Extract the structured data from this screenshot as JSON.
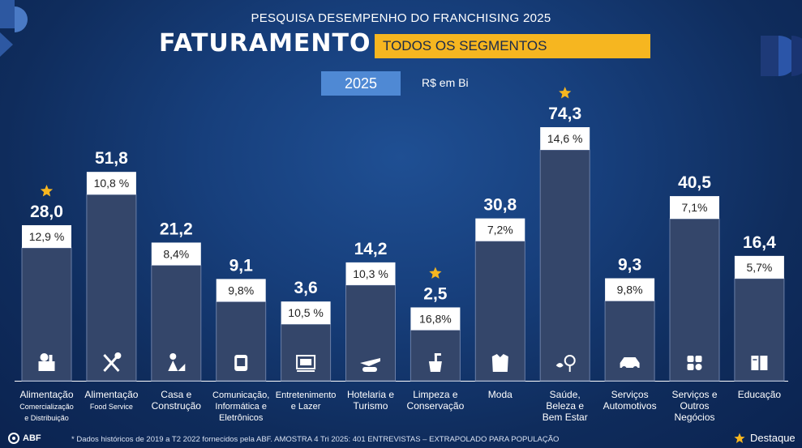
{
  "header": {
    "super_title": "PESQUISA DESEMPENHO DO FRANCHISING 2025",
    "title": "FATURAMENTO",
    "segment_badge": "TODOS OS SEGMENTOS",
    "year": "2025",
    "unit": "R$ em Bi"
  },
  "colors": {
    "background": "#173f7c",
    "bar": "#34466a",
    "bar_top": "#4a5d84",
    "label_box": "#ffffff",
    "accent": "#f6b620",
    "badge_blue": "#4f89d4"
  },
  "chart_data": {
    "type": "bar",
    "categories": [
      "Alimentação Comercialização e Distribuição",
      "Alimentação Food Service",
      "Casa e Construção",
      "Comunicação, Informática e Eletrônicos",
      "Entretenimento e Lazer",
      "Hotelaria e Turismo",
      "Limpeza e Conservação",
      "Moda",
      "Saúde, Beleza e Bem Estar",
      "Serviços Automotivos",
      "Serviços e Outros Negócios",
      "Educação"
    ],
    "category_label_lines": [
      [
        "Alimentação",
        "Comercialização",
        "e Distribuição"
      ],
      [
        "Alimentação",
        "Food Service"
      ],
      [
        "Casa e",
        "Construção"
      ],
      [
        "Comunicação,",
        "Informática e",
        "Eletrônicos"
      ],
      [
        "Entretenimento",
        "e Lazer"
      ],
      [
        "Hotelaria e",
        "Turismo"
      ],
      [
        "Limpeza e",
        "Conservação"
      ],
      [
        "Moda"
      ],
      [
        "Saúde,",
        "Beleza e",
        "Bem Estar"
      ],
      [
        "Serviços",
        "Automotivos"
      ],
      [
        "Serviços e",
        "Outros",
        "Negócios"
      ],
      [
        "Educação"
      ]
    ],
    "values": [
      28.0,
      51.8,
      21.2,
      9.1,
      3.6,
      14.2,
      2.5,
      30.8,
      74.3,
      9.3,
      40.5,
      16.4
    ],
    "value_labels": [
      "28,0",
      "51,8",
      "21,2",
      "9,1",
      "3,6",
      "14,2",
      "2,5",
      "30,8",
      "74,3",
      "9,3",
      "40,5",
      "16,4"
    ],
    "growth_labels": [
      "12,9 %",
      "10,8 %",
      "8,4%",
      "9,8%",
      "10,5 %",
      "10,3 %",
      "16,8%",
      "7,2%",
      "14,6 %",
      "9,8%",
      "7,1%",
      "5,7%"
    ],
    "highlight": [
      true,
      false,
      false,
      false,
      false,
      false,
      true,
      false,
      true,
      false,
      false,
      false
    ],
    "icons": [
      "grocery-icon",
      "utensils-icon",
      "construction-icon",
      "devices-icon",
      "theater-icon",
      "travel-icon",
      "cleaning-icon",
      "clothing-icon",
      "beauty-icon",
      "car-icon",
      "services-icon",
      "book-icon"
    ],
    "ylim": [
      0,
      80
    ],
    "title": "FATURAMENTO",
    "xlabel": "",
    "ylabel": "R$ em Bi",
    "grid": false
  },
  "legend": {
    "label": "Destaque"
  },
  "footer": {
    "logo": "ABF",
    "note": "* Dados históricos de 2019 a T2 2022 fornecidos pela ABF. AMOSTRA 4 Tri 2025: 401 ENTREVISTAS – EXTRAPOLADO PARA POPULAÇÃO"
  }
}
